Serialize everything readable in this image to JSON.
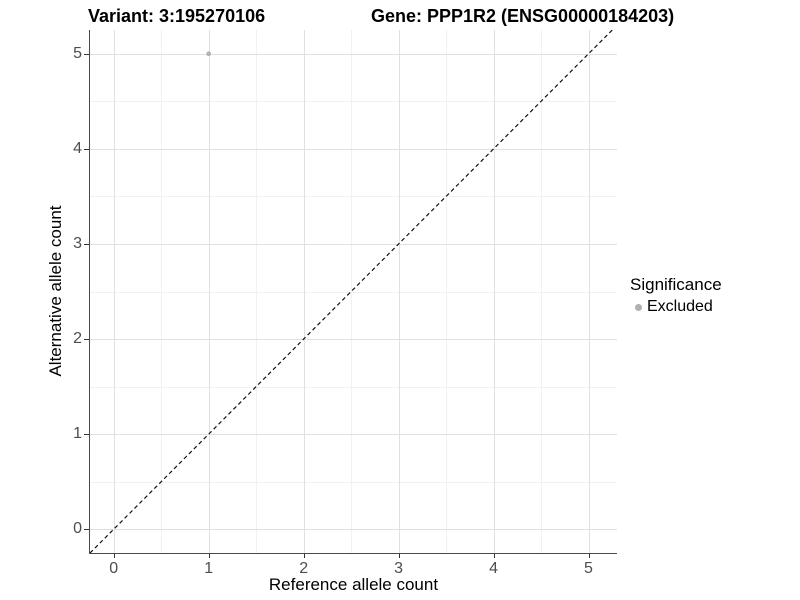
{
  "title": {
    "variant": "Variant: 3:195270106",
    "gene": "Gene: PPP1R2 (ENSG00000184203)"
  },
  "axes": {
    "x": {
      "title": "Reference allele count",
      "ticks": [
        "0",
        "1",
        "2",
        "3",
        "4",
        "5"
      ]
    },
    "y": {
      "title": "Alternative allele count",
      "ticks": [
        "0",
        "1",
        "2",
        "3",
        "4",
        "5"
      ]
    }
  },
  "legend": {
    "title": "Significance",
    "items": [
      {
        "label": "Excluded",
        "color": "#b0b0b0"
      }
    ]
  },
  "colors": {
    "background": "#ffffff",
    "grid_major": "#e0e0e0",
    "grid_minor": "#f1f1f1",
    "axis_line": "#4a4a4a",
    "tick_mark": "#333333",
    "tick_label": "#4d4d4d",
    "point": "#b3b3b3",
    "reference_line": "#111111"
  },
  "chart_data": {
    "type": "scatter",
    "title": "Variant: 3:195270106    Gene: PPP1R2 (ENSG00000184203)",
    "xlabel": "Reference allele count",
    "ylabel": "Alternative allele count",
    "xlim": [
      -0.25,
      5.3
    ],
    "ylim": [
      -0.25,
      5.25
    ],
    "xticks": [
      0,
      1,
      2,
      3,
      4,
      5
    ],
    "yticks": [
      0,
      1,
      2,
      3,
      4,
      5
    ],
    "grid": "major+minor",
    "legend_position": "right",
    "series": [
      {
        "name": "Excluded",
        "color": "#b3b3b3",
        "points": [
          {
            "x": 1,
            "y": 5
          }
        ]
      }
    ],
    "reference_line": {
      "equation": "y = x",
      "style": "dashed",
      "color": "#111111",
      "from": [
        -0.25,
        -0.25
      ],
      "to": [
        5.3,
        5.3
      ]
    }
  }
}
